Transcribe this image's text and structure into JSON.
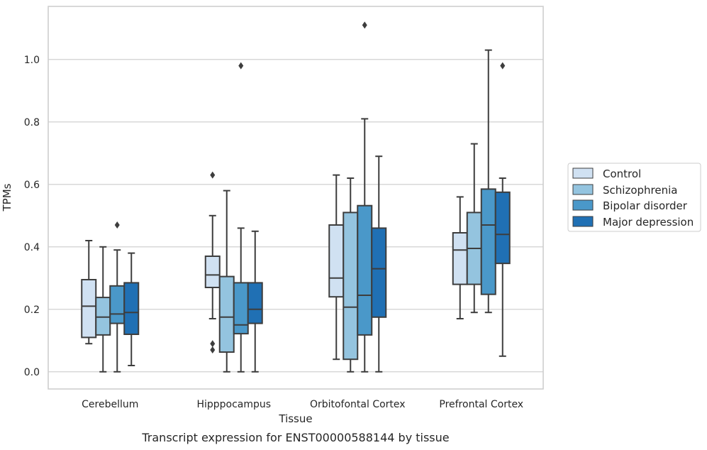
{
  "caption": "Transcript expression for ENST00000588144 by tissue",
  "chart_data": {
    "type": "box",
    "xlabel": "Tissue",
    "ylabel": "TPMs",
    "ylim": [
      -0.055,
      1.17
    ],
    "yticks": [
      0.0,
      0.2,
      0.4,
      0.6,
      0.8,
      1.0
    ],
    "ytick_labels": [
      "0.0",
      "0.2",
      "0.4",
      "0.6",
      "0.8",
      "1.0"
    ],
    "grid": "horizontal",
    "legend_position": "right, outside plot",
    "categories": [
      "Cerebellum",
      "Hipppocampus",
      "Orbitofontal Cortex",
      "Prefrontal Cortex"
    ],
    "series": [
      {
        "name": "Control",
        "color": "#d0e1f2",
        "boxes": [
          {
            "whislo": 0.09,
            "q1": 0.11,
            "med": 0.21,
            "q3": 0.295,
            "whishi": 0.42,
            "fliers": []
          },
          {
            "whislo": 0.17,
            "q1": 0.27,
            "med": 0.31,
            "q3": 0.37,
            "whishi": 0.5,
            "fliers": [
              0.63,
              0.09,
              0.07
            ]
          },
          {
            "whislo": 0.04,
            "q1": 0.24,
            "med": 0.3,
            "q3": 0.47,
            "whishi": 0.63,
            "fliers": []
          },
          {
            "whislo": 0.17,
            "q1": 0.28,
            "med": 0.39,
            "q3": 0.445,
            "whishi": 0.56,
            "fliers": []
          }
        ]
      },
      {
        "name": "Schizophrenia",
        "color": "#94c4df",
        "boxes": [
          {
            "whislo": 0.0,
            "q1": 0.118,
            "med": 0.175,
            "q3": 0.238,
            "whishi": 0.4,
            "fliers": []
          },
          {
            "whislo": 0.0,
            "q1": 0.063,
            "med": 0.175,
            "q3": 0.305,
            "whishi": 0.58,
            "fliers": []
          },
          {
            "whislo": 0.0,
            "q1": 0.04,
            "med": 0.207,
            "q3": 0.51,
            "whishi": 0.62,
            "fliers": []
          },
          {
            "whislo": 0.19,
            "q1": 0.28,
            "med": 0.395,
            "q3": 0.51,
            "whishi": 0.73,
            "fliers": []
          }
        ]
      },
      {
        "name": "Bipolar disorder",
        "color": "#4a98c9",
        "boxes": [
          {
            "whislo": 0.0,
            "q1": 0.155,
            "med": 0.185,
            "q3": 0.275,
            "whishi": 0.39,
            "fliers": [
              0.47
            ]
          },
          {
            "whislo": 0.0,
            "q1": 0.122,
            "med": 0.15,
            "q3": 0.285,
            "whishi": 0.46,
            "fliers": [
              0.98
            ]
          },
          {
            "whislo": 0.0,
            "q1": 0.118,
            "med": 0.245,
            "q3": 0.532,
            "whishi": 0.81,
            "fliers": [
              1.11
            ]
          },
          {
            "whislo": 0.19,
            "q1": 0.248,
            "med": 0.47,
            "q3": 0.585,
            "whishi": 1.03,
            "fliers": []
          }
        ]
      },
      {
        "name": "Major depression",
        "color": "#2070b4",
        "boxes": [
          {
            "whislo": 0.02,
            "q1": 0.12,
            "med": 0.19,
            "q3": 0.285,
            "whishi": 0.38,
            "fliers": []
          },
          {
            "whislo": 0.0,
            "q1": 0.155,
            "med": 0.2,
            "q3": 0.285,
            "whishi": 0.45,
            "fliers": []
          },
          {
            "whislo": 0.0,
            "q1": 0.175,
            "med": 0.33,
            "q3": 0.46,
            "whishi": 0.69,
            "fliers": []
          },
          {
            "whislo": 0.05,
            "q1": 0.347,
            "med": 0.44,
            "q3": 0.575,
            "whishi": 0.62,
            "fliers": [
              0.98
            ]
          }
        ]
      }
    ]
  }
}
